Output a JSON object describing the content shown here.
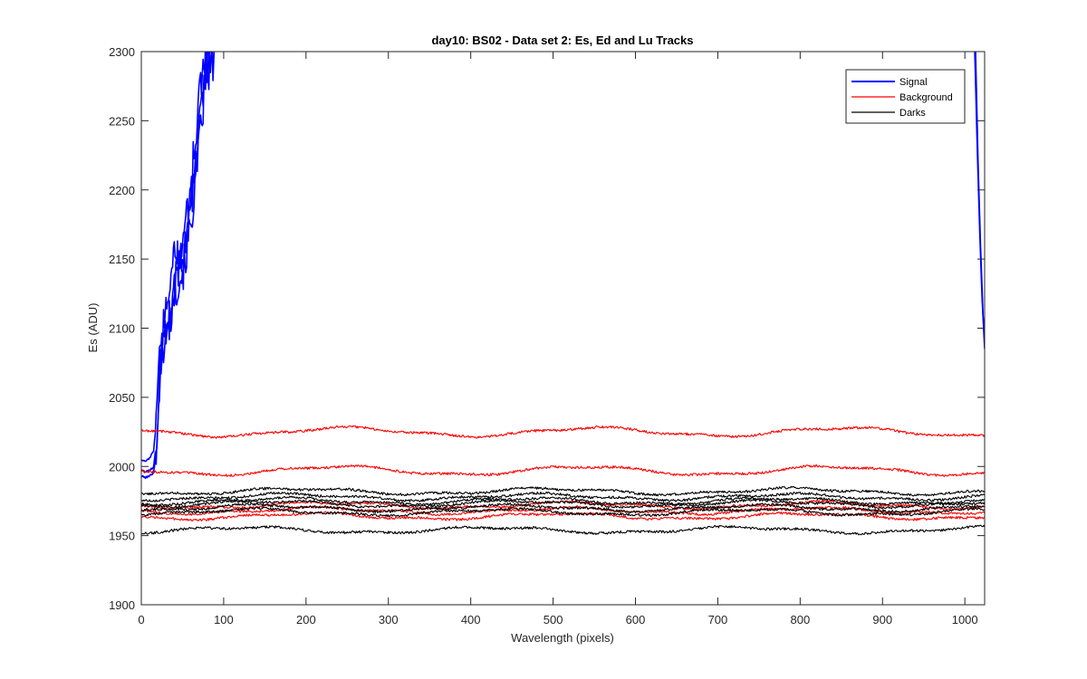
{
  "chart_data": {
    "type": "line",
    "title": "day10: BS02 - Data set 2: Es, Ed and Lu Tracks",
    "xlabel": "Wavelength (pixels)",
    "ylabel": "Es (ADU)",
    "xlim": [
      0,
      1024
    ],
    "ylim": [
      1900,
      2300
    ],
    "xticks": [
      0,
      100,
      200,
      300,
      400,
      500,
      600,
      700,
      800,
      900,
      1000
    ],
    "yticks": [
      1900,
      1950,
      2000,
      2050,
      2100,
      2150,
      2200,
      2250,
      2300
    ],
    "grid": false,
    "legend": {
      "position": "top-right",
      "entries": [
        {
          "label": "Signal",
          "color": "#0000ff"
        },
        {
          "label": "Background",
          "color": "#ff0000"
        },
        {
          "label": "Darks",
          "color": "#000000"
        }
      ]
    },
    "series": [
      {
        "group": "Signal",
        "color": "#0000ff",
        "points": [
          [
            0,
            1993
          ],
          [
            5,
            1992
          ],
          [
            10,
            1993
          ],
          [
            15,
            1996
          ],
          [
            18,
            2010
          ],
          [
            22,
            2060
          ],
          [
            26,
            2085
          ],
          [
            30,
            2095
          ],
          [
            35,
            2105
          ],
          [
            40,
            2125
          ],
          [
            45,
            2135
          ],
          [
            50,
            2140
          ],
          [
            55,
            2155
          ],
          [
            60,
            2175
          ],
          [
            65,
            2200
          ],
          [
            70,
            2230
          ],
          [
            75,
            2260
          ],
          [
            80,
            2280
          ],
          [
            85,
            2290
          ],
          [
            90,
            2300
          ]
        ]
      },
      {
        "group": "Signal",
        "color": "#0000ff",
        "points": [
          [
            0,
            2005
          ],
          [
            5,
            2004
          ],
          [
            10,
            2006
          ],
          [
            15,
            2012
          ],
          [
            18,
            2030
          ],
          [
            22,
            2075
          ],
          [
            26,
            2100
          ],
          [
            30,
            2110
          ],
          [
            35,
            2130
          ],
          [
            40,
            2150
          ],
          [
            45,
            2155
          ],
          [
            50,
            2160
          ],
          [
            55,
            2180
          ],
          [
            60,
            2200
          ],
          [
            65,
            2235
          ],
          [
            70,
            2265
          ],
          [
            75,
            2290
          ],
          [
            80,
            2300
          ]
        ]
      },
      {
        "group": "Signal",
        "color": "#0000ff",
        "points": [
          [
            0,
            1998
          ],
          [
            5,
            1996
          ],
          [
            10,
            1997
          ],
          [
            15,
            2000
          ],
          [
            18,
            2015
          ],
          [
            22,
            2065
          ],
          [
            26,
            2090
          ],
          [
            30,
            2100
          ],
          [
            35,
            2115
          ],
          [
            40,
            2135
          ],
          [
            45,
            2145
          ],
          [
            50,
            2150
          ],
          [
            55,
            2165
          ],
          [
            60,
            2185
          ],
          [
            65,
            2215
          ],
          [
            70,
            2245
          ],
          [
            75,
            2270
          ],
          [
            80,
            2290
          ],
          [
            85,
            2300
          ]
        ]
      },
      {
        "group": "Signal",
        "color": "#0000ff",
        "points": [
          [
            1012,
            2300
          ],
          [
            1015,
            2230
          ],
          [
            1018,
            2170
          ],
          [
            1021,
            2120
          ],
          [
            1024,
            2085
          ]
        ]
      },
      {
        "group": "Signal",
        "color": "#0000ff",
        "points": [
          [
            1013,
            2300
          ],
          [
            1016,
            2220
          ],
          [
            1019,
            2160
          ],
          [
            1022,
            2110
          ],
          [
            1024,
            2092
          ]
        ]
      },
      {
        "group": "Background",
        "color": "#ff0000",
        "level": 2025,
        "amp": 3
      },
      {
        "group": "Background",
        "color": "#ff0000",
        "level": 1997,
        "amp": 3
      },
      {
        "group": "Background",
        "color": "#ff0000",
        "level": 1972,
        "amp": 2
      },
      {
        "group": "Background",
        "color": "#ff0000",
        "level": 1968,
        "amp": 2
      },
      {
        "group": "Background",
        "color": "#ff0000",
        "level": 1964,
        "amp": 2
      },
      {
        "group": "Darks",
        "color": "#000000",
        "level": 1982,
        "amp": 2
      },
      {
        "group": "Darks",
        "color": "#000000",
        "level": 1978,
        "amp": 2
      },
      {
        "group": "Darks",
        "color": "#000000",
        "level": 1975,
        "amp": 2
      },
      {
        "group": "Darks",
        "color": "#000000",
        "level": 1973,
        "amp": 2
      },
      {
        "group": "Darks",
        "color": "#000000",
        "level": 1970,
        "amp": 2
      },
      {
        "group": "Darks",
        "color": "#000000",
        "level": 1967,
        "amp": 2
      },
      {
        "group": "Darks",
        "color": "#000000",
        "level": 1954,
        "amp": 2
      }
    ]
  }
}
